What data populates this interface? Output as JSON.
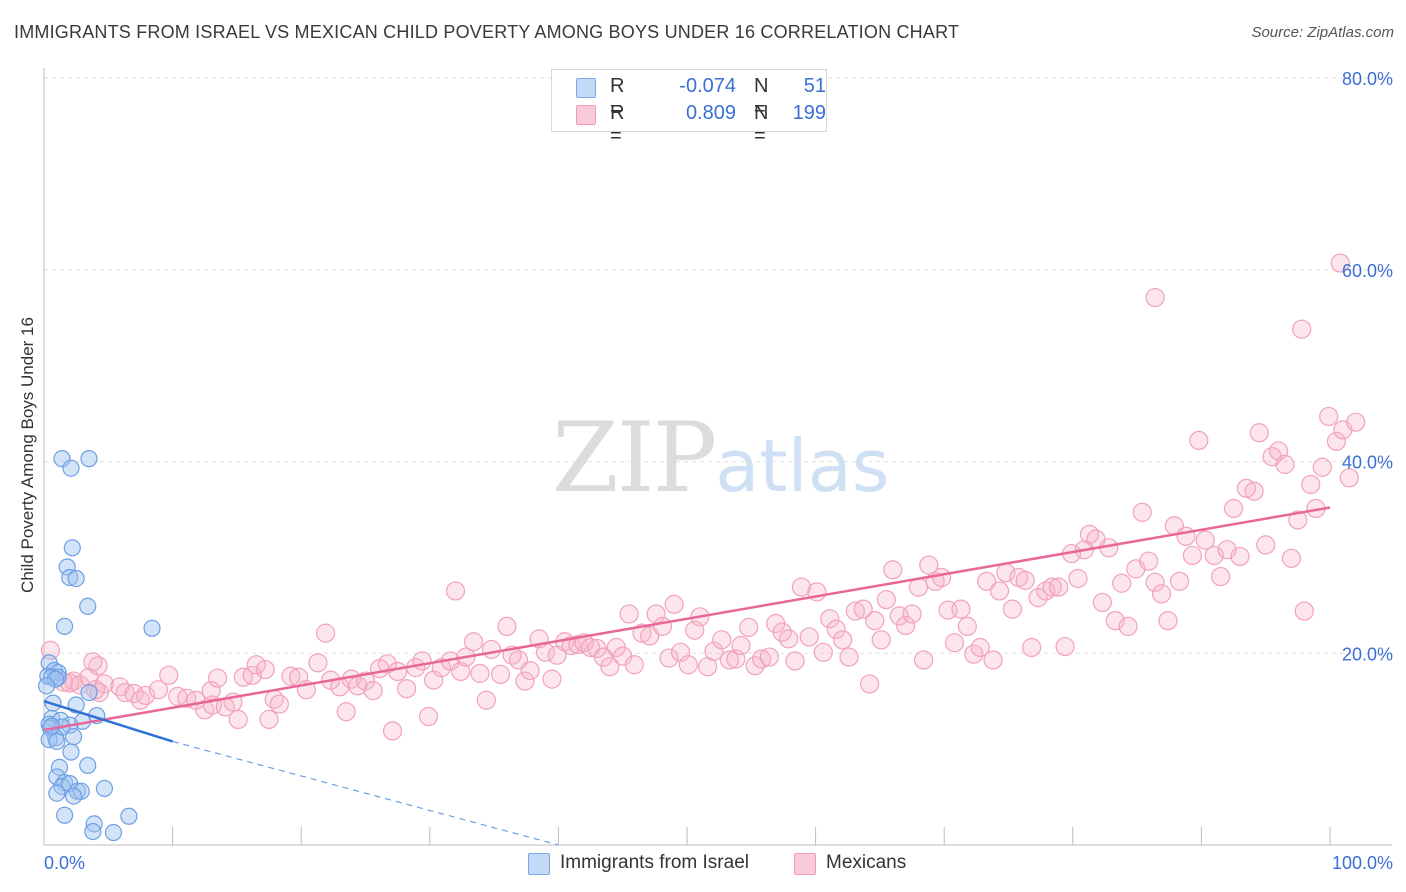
{
  "header": {
    "title": "IMMIGRANTS FROM ISRAEL VS MEXICAN CHILD POVERTY AMONG BOYS UNDER 16 CORRELATION CHART",
    "source": "Source: ZipAtlas.com"
  },
  "watermark": {
    "zip": "ZIP",
    "atlas": "atlas"
  },
  "legend": {
    "rows": [
      {
        "r_label": "R =",
        "r_value": "-0.074",
        "n_label": "N =",
        "n_value": "51",
        "color": "#a9c8f2"
      },
      {
        "r_label": "R =",
        "r_value": "0.809",
        "n_label": "N =",
        "n_value": "199",
        "color": "#f6b8ca"
      }
    ]
  },
  "series_legend": [
    {
      "name": "Immigrants from Israel",
      "color": "#a9c8f2"
    },
    {
      "name": "Mexicans",
      "color": "#f6b8ca"
    }
  ],
  "chart_data": {
    "type": "scatter",
    "title": "IMMIGRANTS FROM ISRAEL VS MEXICAN CHILD POVERTY AMONG BOYS UNDER 16 CORRELATION CHART",
    "xlabel": "",
    "ylabel": "Child Poverty Among Boys Under 16",
    "xlim": [
      0,
      100
    ],
    "ylim": [
      0,
      80
    ],
    "x_tick_labels": [
      "0.0%",
      "100.0%"
    ],
    "y_ticks": [
      20,
      40,
      60,
      80
    ],
    "y_tick_labels": [
      "20.0%",
      "40.0%",
      "60.0%",
      "80.0%"
    ],
    "grid": true,
    "legend_position": "top-center",
    "series": [
      {
        "name": "Immigrants from Israel",
        "color": "#6fa0e8",
        "points": [
          [
            1.4,
            40.3
          ],
          [
            3.5,
            40.3
          ],
          [
            2.1,
            39.3
          ],
          [
            2.2,
            31
          ],
          [
            1.8,
            29
          ],
          [
            2.0,
            27.9
          ],
          [
            2.5,
            27.8
          ],
          [
            3.4,
            24.9
          ],
          [
            1.6,
            22.8
          ],
          [
            8.4,
            22.6
          ],
          [
            0.4,
            19
          ],
          [
            0.8,
            18.2
          ],
          [
            1.1,
            18
          ],
          [
            0.3,
            17.6
          ],
          [
            0.6,
            17.5
          ],
          [
            1.1,
            17.5
          ],
          [
            3.5,
            15.9
          ],
          [
            0.7,
            14.8
          ],
          [
            2.5,
            14.6
          ],
          [
            4.1,
            13.5
          ],
          [
            0.6,
            13.2
          ],
          [
            1.3,
            13
          ],
          [
            0.4,
            12.6
          ],
          [
            3.0,
            12.9
          ],
          [
            2.0,
            12.5
          ],
          [
            1.4,
            12.3
          ],
          [
            0.5,
            12.2
          ],
          [
            0.9,
            11.2
          ],
          [
            0.4,
            11
          ],
          [
            2.3,
            11.3
          ],
          [
            1.0,
            10.8
          ],
          [
            2.1,
            9.7
          ],
          [
            3.4,
            8.3
          ],
          [
            1.2,
            8.1
          ],
          [
            1.0,
            7.1
          ],
          [
            1.6,
            6.5
          ],
          [
            1.4,
            6.1
          ],
          [
            2.0,
            6.4
          ],
          [
            4.7,
            5.9
          ],
          [
            1.0,
            5.4
          ],
          [
            2.6,
            5.6
          ],
          [
            2.9,
            5.6
          ],
          [
            2.3,
            5.1
          ],
          [
            1.6,
            3.1
          ],
          [
            6.6,
            3.0
          ],
          [
            3.9,
            2.2
          ],
          [
            3.8,
            1.4
          ],
          [
            5.4,
            1.3
          ],
          [
            0.9,
            17.3
          ],
          [
            0.2,
            16.6
          ],
          [
            0.6,
            12.4
          ]
        ],
        "trend": {
          "x0": 0,
          "y0": 15.0,
          "x1": 10,
          "y1": 10.8,
          "dashed_to_x": 40,
          "dashed_to_y": 0
        }
      },
      {
        "name": "Mexicans",
        "color": "#f090ae",
        "points": [
          [
            0.5,
            20.3
          ],
          [
            1.5,
            17
          ],
          [
            2.3,
            17.1
          ],
          [
            2.0,
            16.9
          ],
          [
            2.8,
            16.7
          ],
          [
            3.5,
            17.5
          ],
          [
            4.2,
            18.7
          ],
          [
            3.8,
            19.1
          ],
          [
            4.7,
            16.8
          ],
          [
            4.3,
            15.9
          ],
          [
            5.9,
            16.5
          ],
          [
            6.3,
            15.9
          ],
          [
            7.0,
            15.8
          ],
          [
            7.5,
            15.1
          ],
          [
            7.9,
            15.6
          ],
          [
            8.9,
            16.2
          ],
          [
            9.7,
            17.7
          ],
          [
            10.4,
            15.5
          ],
          [
            11.1,
            15.3
          ],
          [
            11.8,
            15.1
          ],
          [
            12.5,
            14.1
          ],
          [
            13.1,
            14.6
          ],
          [
            13.0,
            16.1
          ],
          [
            13.5,
            17.4
          ],
          [
            14.1,
            14.4
          ],
          [
            14.7,
            14.9
          ],
          [
            15.1,
            13.1
          ],
          [
            15.5,
            17.5
          ],
          [
            16.2,
            17.7
          ],
          [
            16.5,
            18.8
          ],
          [
            17.2,
            18.3
          ],
          [
            17.5,
            13.1
          ],
          [
            17.9,
            15.2
          ],
          [
            18.3,
            14.7
          ],
          [
            19.2,
            17.6
          ],
          [
            19.8,
            17.5
          ],
          [
            20.4,
            16.2
          ],
          [
            21.3,
            19
          ],
          [
            21.9,
            22.1
          ],
          [
            22.3,
            17.2
          ],
          [
            23.0,
            16.5
          ],
          [
            23.5,
            13.9
          ],
          [
            23.9,
            17.3
          ],
          [
            24.4,
            16.6
          ],
          [
            25.0,
            17.1
          ],
          [
            25.6,
            16.1
          ],
          [
            26.1,
            18.4
          ],
          [
            26.7,
            18.9
          ],
          [
            27.1,
            11.9
          ],
          [
            27.5,
            18.1
          ],
          [
            28.2,
            16.3
          ],
          [
            28.9,
            18.5
          ],
          [
            29.4,
            19.2
          ],
          [
            29.9,
            13.4
          ],
          [
            30.3,
            17.2
          ],
          [
            30.9,
            18.5
          ],
          [
            31.6,
            19.2
          ],
          [
            32.0,
            26.5
          ],
          [
            32.4,
            18.1
          ],
          [
            32.8,
            19.6
          ],
          [
            33.4,
            21.2
          ],
          [
            33.9,
            17.9
          ],
          [
            34.4,
            15.1
          ],
          [
            34.8,
            20.4
          ],
          [
            35.5,
            17.8
          ],
          [
            36.0,
            22.8
          ],
          [
            36.4,
            19.8
          ],
          [
            36.9,
            19.3
          ],
          [
            37.4,
            17.1
          ],
          [
            37.8,
            18.2
          ],
          [
            38.5,
            21.5
          ],
          [
            39.0,
            20.1
          ],
          [
            39.5,
            17.3
          ],
          [
            39.9,
            19.8
          ],
          [
            40.5,
            21.2
          ],
          [
            41.0,
            20.8
          ],
          [
            41.5,
            20.9
          ],
          [
            42.0,
            21.1
          ],
          [
            42.5,
            20.6
          ],
          [
            43.0,
            20.5
          ],
          [
            43.5,
            19.6
          ],
          [
            44.0,
            18.6
          ],
          [
            44.5,
            20.6
          ],
          [
            45.0,
            19.7
          ],
          [
            45.5,
            24.1
          ],
          [
            45.9,
            18.8
          ],
          [
            46.5,
            22.1
          ],
          [
            47.1,
            21.8
          ],
          [
            47.6,
            24.1
          ],
          [
            48.1,
            22.8
          ],
          [
            48.6,
            19.5
          ],
          [
            49.0,
            25.1
          ],
          [
            49.5,
            20.1
          ],
          [
            50.1,
            18.8
          ],
          [
            50.6,
            22.4
          ],
          [
            51.0,
            23.8
          ],
          [
            51.6,
            18.6
          ],
          [
            52.1,
            20.2
          ],
          [
            52.7,
            21.4
          ],
          [
            53.3,
            19.3
          ],
          [
            53.8,
            19.4
          ],
          [
            54.2,
            20.8
          ],
          [
            54.8,
            22.7
          ],
          [
            55.3,
            18.7
          ],
          [
            55.8,
            19.4
          ],
          [
            56.4,
            19.6
          ],
          [
            56.9,
            23.1
          ],
          [
            57.4,
            22.2
          ],
          [
            57.9,
            21.5
          ],
          [
            58.4,
            19.2
          ],
          [
            58.9,
            26.9
          ],
          [
            59.5,
            21.7
          ],
          [
            60.1,
            26.4
          ],
          [
            60.6,
            20.1
          ],
          [
            61.1,
            23.6
          ],
          [
            61.6,
            22.5
          ],
          [
            62.1,
            21.4
          ],
          [
            62.6,
            19.6
          ],
          [
            63.1,
            24.4
          ],
          [
            63.7,
            24.6
          ],
          [
            64.2,
            16.8
          ],
          [
            64.6,
            23.4
          ],
          [
            65.1,
            21.4
          ],
          [
            65.5,
            25.6
          ],
          [
            66.0,
            28.7
          ],
          [
            66.5,
            23.9
          ],
          [
            67.0,
            22.9
          ],
          [
            67.5,
            24.1
          ],
          [
            68.0,
            26.9
          ],
          [
            68.4,
            19.3
          ],
          [
            68.8,
            29.2
          ],
          [
            69.3,
            27.5
          ],
          [
            69.8,
            27.9
          ],
          [
            70.3,
            24.5
          ],
          [
            70.8,
            21.1
          ],
          [
            71.3,
            24.6
          ],
          [
            71.8,
            22.8
          ],
          [
            72.3,
            19.9
          ],
          [
            72.8,
            20.6
          ],
          [
            73.3,
            27.5
          ],
          [
            73.8,
            19.3
          ],
          [
            74.3,
            26.5
          ],
          [
            74.8,
            28.4
          ],
          [
            75.3,
            24.6
          ],
          [
            75.8,
            27.9
          ],
          [
            76.3,
            27.6
          ],
          [
            76.8,
            20.6
          ],
          [
            77.3,
            25.8
          ],
          [
            77.9,
            26.5
          ],
          [
            78.4,
            26.9
          ],
          [
            78.9,
            26.9
          ],
          [
            79.4,
            20.7
          ],
          [
            79.9,
            30.4
          ],
          [
            80.4,
            27.8
          ],
          [
            80.9,
            30.8
          ],
          [
            81.3,
            32.4
          ],
          [
            81.8,
            31.9
          ],
          [
            82.3,
            25.3
          ],
          [
            82.8,
            31
          ],
          [
            83.3,
            23.4
          ],
          [
            83.8,
            27.3
          ],
          [
            84.3,
            22.8
          ],
          [
            84.9,
            28.8
          ],
          [
            85.4,
            34.7
          ],
          [
            85.9,
            29.6
          ],
          [
            86.4,
            27.4
          ],
          [
            86.9,
            26.2
          ],
          [
            87.4,
            23.4
          ],
          [
            87.9,
            33.3
          ],
          [
            88.3,
            27.5
          ],
          [
            88.8,
            32.2
          ],
          [
            89.3,
            30.2
          ],
          [
            89.8,
            42.2
          ],
          [
            90.3,
            31.8
          ],
          [
            91.0,
            30.2
          ],
          [
            91.5,
            28
          ],
          [
            92.0,
            30.8
          ],
          [
            92.5,
            35.1
          ],
          [
            93.0,
            30.1
          ],
          [
            93.5,
            37.2
          ],
          [
            94.1,
            36.9
          ],
          [
            94.5,
            43
          ],
          [
            95.0,
            31.3
          ],
          [
            95.5,
            40.5
          ],
          [
            96.0,
            41.1
          ],
          [
            96.5,
            39.7
          ],
          [
            97.0,
            29.9
          ],
          [
            97.5,
            33.9
          ],
          [
            98.0,
            24.4
          ],
          [
            98.5,
            37.6
          ],
          [
            98.9,
            35.1
          ],
          [
            99.4,
            39.4
          ],
          [
            99.9,
            44.7
          ],
          [
            100.5,
            42.1
          ],
          [
            101.0,
            43.3
          ],
          [
            101.5,
            38.3
          ],
          [
            102.0,
            44.1
          ],
          [
            86.4,
            57.1
          ],
          [
            97.8,
            53.8
          ],
          [
            100.8,
            60.7
          ],
          [
            4.0,
            16.2
          ]
        ],
        "trend": {
          "x0": 0,
          "y0": 12.0,
          "x1": 100,
          "y1": 35.2
        }
      }
    ]
  }
}
